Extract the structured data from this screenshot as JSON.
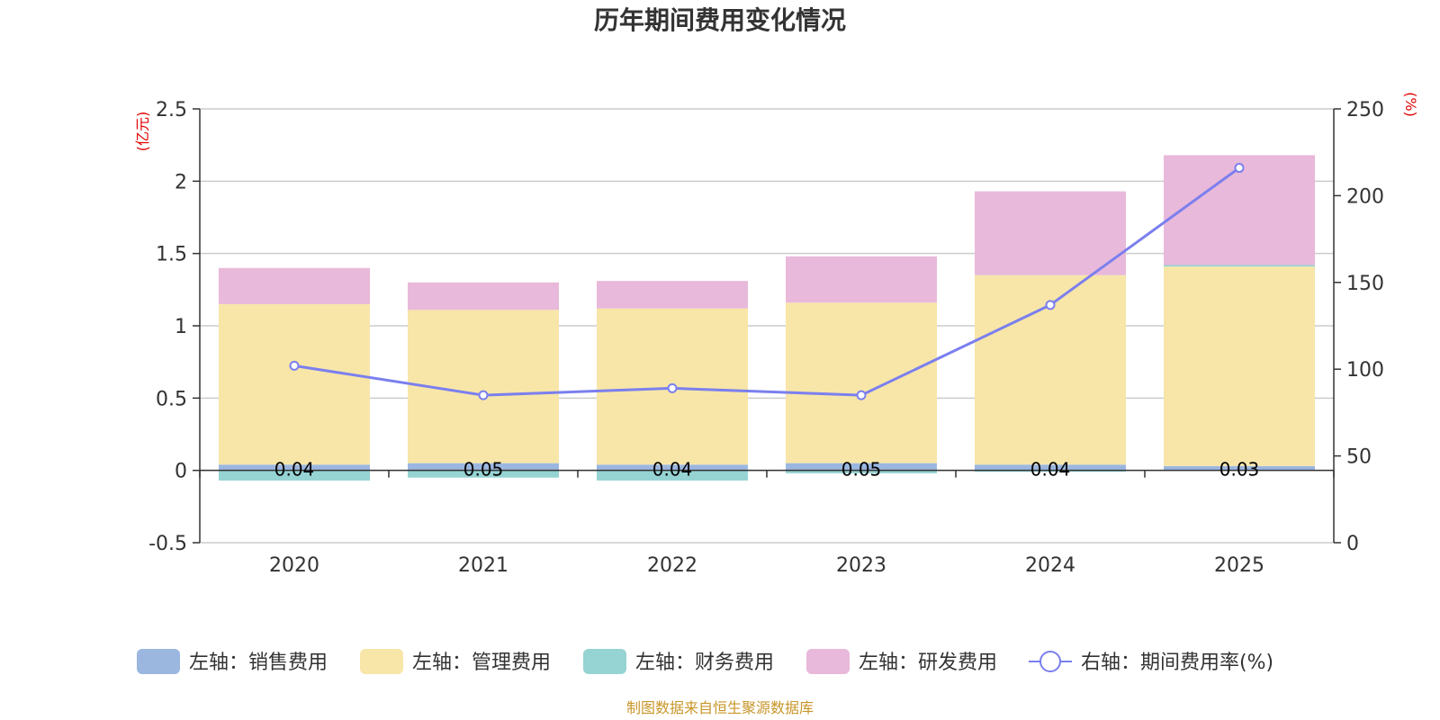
{
  "chart_data": {
    "type": "bar",
    "title": "历年期间费用变化情况",
    "categories": [
      "2020",
      "2021",
      "2022",
      "2023",
      "2024",
      "2025"
    ],
    "left_axis": {
      "unit": "(亿元)",
      "ylim": [
        -0.5,
        2.5
      ],
      "ticks": [
        "-0.5",
        "0",
        "0.5",
        "1",
        "1.5",
        "2",
        "2.5"
      ],
      "tick_values": [
        -0.5,
        0,
        0.5,
        1,
        1.5,
        2,
        2.5
      ]
    },
    "right_axis": {
      "unit": "(%)",
      "ylim": [
        0,
        250
      ],
      "ticks": [
        "0",
        "50",
        "100",
        "150",
        "200",
        "250"
      ],
      "tick_values": [
        0,
        50,
        100,
        150,
        200,
        250
      ]
    },
    "series": [
      {
        "name": "左轴：销售费用",
        "kind": "bar",
        "axis": "left",
        "color": "#9bb7e0",
        "values": [
          0.04,
          0.05,
          0.04,
          0.05,
          0.04,
          0.03
        ],
        "labels": [
          "0.04",
          "0.05",
          "0.04",
          "0.05",
          "0.04",
          "0.03"
        ]
      },
      {
        "name": "左轴：管理费用",
        "kind": "bar",
        "axis": "left",
        "color": "#f7e6a8",
        "values": [
          1.11,
          1.06,
          1.08,
          1.11,
          1.31,
          1.38
        ]
      },
      {
        "name": "左轴：财务费用",
        "kind": "bar",
        "axis": "left",
        "color": "#96d3d3",
        "values": [
          -0.07,
          -0.05,
          -0.07,
          -0.02,
          -0.01,
          0.01
        ]
      },
      {
        "name": "左轴：研发费用",
        "kind": "bar",
        "axis": "left",
        "color": "#e8b9da",
        "values": [
          0.25,
          0.19,
          0.19,
          0.32,
          0.58,
          0.76
        ]
      },
      {
        "name": "右轴：期间费用率(%)",
        "kind": "line",
        "axis": "right",
        "color": "#7b7fee",
        "values": [
          102,
          85,
          89,
          85,
          137,
          216
        ]
      }
    ],
    "legend_position": "bottom",
    "grid": true
  },
  "source": "制图数据来自恒生聚源数据库"
}
